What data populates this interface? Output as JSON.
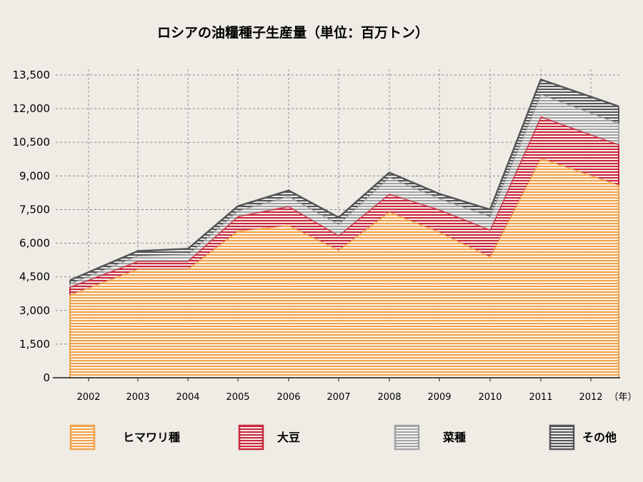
{
  "chart_data": {
    "type": "area",
    "stacked": true,
    "title": "ロシアの油糧種子生産量（単位：百万トン）",
    "x_unit_label": "（年）",
    "x": [
      "2002",
      "2003",
      "2004",
      "2005",
      "2006",
      "2007",
      "2008",
      "2009",
      "2010",
      "2011",
      "2012"
    ],
    "y_ticks": [
      "0",
      "1,500",
      "3,000",
      "4,500",
      "6,000",
      "7,500",
      "9,000",
      "10,500",
      "12,000",
      "13,500"
    ],
    "ylim": [
      0,
      13500
    ],
    "grid": true,
    "legend_position": "bottom",
    "series": [
      {
        "name": "ヒマワリ種",
        "color": "#f0a24a",
        "values": [
          3700,
          4850,
          4850,
          6550,
          6800,
          5700,
          7400,
          6500,
          5400,
          9800,
          8600
        ]
      },
      {
        "name": "大豆",
        "color": "#c8283c",
        "values": [
          350,
          350,
          350,
          650,
          850,
          650,
          800,
          1000,
          1200,
          1850,
          1800
        ]
      },
      {
        "name": "菜種",
        "color": "#a3a3a3",
        "values": [
          150,
          250,
          300,
          250,
          450,
          500,
          750,
          500,
          600,
          1000,
          950
        ]
      },
      {
        "name": "その他",
        "color": "#555555",
        "values": [
          150,
          200,
          250,
          200,
          250,
          300,
          200,
          200,
          300,
          650,
          750
        ]
      }
    ]
  }
}
